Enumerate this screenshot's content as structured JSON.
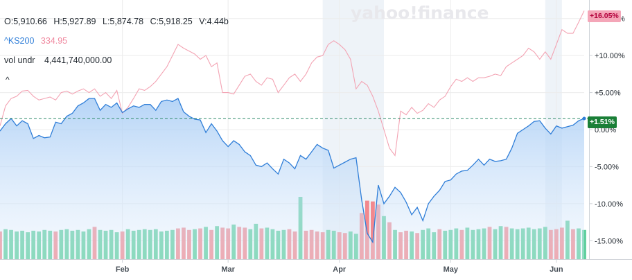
{
  "header": {
    "open": "O:5,910.66",
    "high": "H:5,927.89",
    "low": "L:5,874.78",
    "close": "C:5,918.25",
    "volume": "V:4.44b"
  },
  "symbols": {
    "primary": "^KS200",
    "compare": "334.95"
  },
  "volume_row": {
    "label": "vol undr",
    "value": "4,441,740,000.00"
  },
  "collapse_glyph": "^",
  "logo": "yahoo!finance",
  "badges": {
    "compare_change": "+16.05%",
    "primary_change": "+1.51%"
  },
  "colors": {
    "primary_line": "#2f7ed8",
    "compare_line": "#f3a3b3",
    "vol_up": "#5cce9c",
    "vol_down": "#f2888e",
    "grid": "#ececec",
    "highlight": "#eef3f8"
  },
  "chart_data": {
    "type": "line",
    "ylim": [
      -17.5,
      17.5
    ],
    "y_ticks": [
      "+15.00%",
      "+10.00%",
      "+5.00%",
      "0.00%",
      "-5.00%",
      "-10.00%",
      "-15.00%"
    ],
    "y_tick_values": [
      15,
      10,
      5,
      0,
      -5,
      -10,
      -15
    ],
    "x_ticks": [
      "Feb",
      "Mar",
      "Apr",
      "May",
      "Jun"
    ],
    "x_tick_index": [
      22,
      41,
      61,
      81,
      100
    ],
    "highlight_ranges": [
      [
        58,
        69
      ],
      [
        98,
        101
      ]
    ],
    "reference_value": 1.51,
    "series": [
      {
        "name": "^KS200",
        "values": [
          -0.2,
          0.8,
          1.5,
          0.5,
          1.2,
          0.8,
          -1.2,
          -0.8,
          -1.1,
          -1.0,
          1.0,
          0.8,
          1.8,
          2.2,
          3.2,
          3.6,
          4.2,
          4.2,
          2.6,
          3.4,
          3.0,
          3.6,
          2.3,
          2.8,
          3.2,
          3.0,
          3.4,
          3.4,
          2.6,
          3.8,
          4.0,
          3.8,
          4.2,
          2.4,
          1.8,
          1.4,
          1.3,
          -0.4,
          0.8,
          -0.2,
          -1.5,
          -2.3,
          -1.5,
          -2.0,
          -3.0,
          -3.5,
          -4.8,
          -5.0,
          -4.5,
          -5.3,
          -6.0,
          -4.0,
          -4.5,
          -5.3,
          -3.5,
          -4.0,
          -3.0,
          -2.0,
          -2.5,
          -2.8,
          -5.2,
          -4.8,
          -4.4,
          -4.0,
          -3.8,
          -9.5,
          -14.0,
          -15.2,
          -7.5,
          -10.0,
          -9.0,
          -7.8,
          -8.5,
          -9.8,
          -11.5,
          -10.5,
          -12.3,
          -10.0,
          -9.0,
          -8.2,
          -7.0,
          -6.8,
          -6.0,
          -5.6,
          -5.5,
          -4.8,
          -4.0,
          -4.8,
          -4.0,
          -4.3,
          -4.2,
          -4.0,
          -2.5,
          -0.5,
          0.0,
          0.5,
          1.1,
          1.2,
          0.2,
          -0.6,
          0.5,
          0.2,
          0.4,
          0.6,
          1.2,
          1.5
        ]
      },
      {
        "name": "334.95",
        "values": [
          0.5,
          3.2,
          4.2,
          4.5,
          5.2,
          5.3,
          4.5,
          4.0,
          4.2,
          4.4,
          4.0,
          5.0,
          5.2,
          4.8,
          5.2,
          5.5,
          5.0,
          5.5,
          4.5,
          5.0,
          4.2,
          5.3,
          2.2,
          3.0,
          4.2,
          5.5,
          5.3,
          5.8,
          6.5,
          7.5,
          8.5,
          10.0,
          11.5,
          11.0,
          10.6,
          10.2,
          9.5,
          10.0,
          8.5,
          9.0,
          5.0,
          5.0,
          4.8,
          6.0,
          7.2,
          7.5,
          6.5,
          6.0,
          7.0,
          6.8,
          5.0,
          6.0,
          7.0,
          7.5,
          6.5,
          7.5,
          9.0,
          9.8,
          10.0,
          11.5,
          12.0,
          11.5,
          10.8,
          9.5,
          5.5,
          6.5,
          6.0,
          4.5,
          2.5,
          0.0,
          -2.5,
          -3.5,
          2.5,
          2.0,
          3.0,
          2.2,
          2.6,
          3.5,
          3.0,
          4.0,
          4.5,
          5.8,
          6.8,
          6.5,
          7.0,
          6.5,
          7.0,
          7.0,
          7.2,
          7.5,
          7.3,
          8.5,
          9.0,
          9.5,
          10.0,
          11.0,
          10.5,
          9.5,
          10.5,
          9.5,
          11.5,
          13.5,
          13.0,
          13.0,
          14.5,
          16.05
        ]
      }
    ],
    "volume": {
      "label": "vol undr",
      "values": [
        3.6,
        3.9,
        3.8,
        3.6,
        3.7,
        3.5,
        3.7,
        3.6,
        3.8,
        3.7,
        3.6,
        3.8,
        3.9,
        3.7,
        3.8,
        3.6,
        3.9,
        4.2,
        3.8,
        3.7,
        3.8,
        3.5,
        3.6,
        3.9,
        3.7,
        3.8,
        3.9,
        3.8,
        3.9,
        3.6,
        3.7,
        3.8,
        4.0,
        4.1,
        3.8,
        3.9,
        4.0,
        4.2,
        3.8,
        4.3,
        4.1,
        4.0,
        4.5,
        4.2,
        4.1,
        3.9,
        4.6,
        4.0,
        4.1,
        3.9,
        3.7,
        3.8,
        3.9,
        3.6,
        8.1,
        3.7,
        3.8,
        3.6,
        3.5,
        3.8,
        3.7,
        3.5,
        3.4,
        3.6,
        3.3,
        6.0,
        7.6,
        7.5,
        7.1,
        5.6,
        4.8,
        3.8,
        3.5,
        3.7,
        3.6,
        3.4,
        3.8,
        4.0,
        3.5,
        3.9,
        3.7,
        3.8,
        4.0,
        3.8,
        4.1,
        3.8,
        3.9,
        4.0,
        4.2,
        3.9,
        4.3,
        4.2,
        4.0,
        3.9,
        4.0,
        4.1,
        3.9,
        4.0,
        4.2,
        3.8,
        3.9,
        4.1,
        5.0,
        3.9,
        4.0,
        3.8
      ],
      "up": [
        0,
        1,
        1,
        1,
        1,
        1,
        1,
        1,
        1,
        1,
        0,
        1,
        1,
        1,
        1,
        1,
        1,
        0,
        1,
        1,
        1,
        1,
        0,
        1,
        1,
        1,
        1,
        1,
        1,
        1,
        1,
        1,
        0,
        0,
        0,
        1,
        0,
        1,
        0,
        1,
        0,
        0,
        1,
        0,
        0,
        1,
        1,
        0,
        1,
        1,
        1,
        1,
        0,
        0,
        1,
        0,
        0,
        0,
        0,
        1,
        1,
        0,
        0,
        1,
        1,
        0,
        0,
        0,
        0,
        1,
        0,
        1,
        0,
        0,
        1,
        0,
        1,
        1,
        1,
        0,
        1,
        1,
        1,
        0,
        1,
        1,
        1,
        1,
        0,
        1,
        1,
        0,
        1,
        1,
        1,
        1,
        1,
        1,
        1,
        0,
        0,
        0,
        1,
        0,
        1,
        1
      ]
    }
  }
}
